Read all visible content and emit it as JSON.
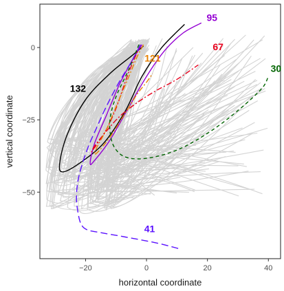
{
  "chart_data": {
    "type": "line",
    "title": "",
    "xlabel": "horizontal coordinate",
    "ylabel": "vertical coordinate",
    "xlim": [
      -35,
      44
    ],
    "ylim": [
      -73,
      15
    ],
    "x_ticks": [
      -20,
      0,
      20,
      40
    ],
    "y_ticks": [
      -50,
      -25,
      0
    ],
    "x_tick_labels": [
      "−20",
      "0",
      "20",
      "40"
    ],
    "y_tick_labels": [
      "−50",
      "−25",
      "0"
    ],
    "grid": false,
    "background_color": "#d3d3d3",
    "series": [
      {
        "name": "132",
        "color": "#000000",
        "dash": "solid",
        "label_at": [
          -22.5,
          -14.5
        ],
        "x": [
          -1,
          -5,
          -12,
          -20,
          -26,
          -28.5,
          -27.5,
          -22,
          -14,
          -7,
          -1.5,
          5,
          12.5
        ],
        "y": [
          0.5,
          -3,
          -9,
          -18,
          -30,
          -40,
          -43,
          -40,
          -33,
          -22,
          -10,
          0,
          8
        ]
      },
      {
        "name": "95",
        "color": "#9400d3",
        "dash": "solid",
        "label_at": [
          21.5,
          10
        ],
        "x": [
          -1.5,
          -5,
          -9,
          -13,
          -17,
          -18.5,
          -17,
          -12,
          -6,
          0,
          6,
          12,
          18
        ],
        "y": [
          1,
          -5,
          -13,
          -23,
          -33,
          -40,
          -39,
          -32,
          -21,
          -10,
          -1,
          5,
          8.5
        ]
      },
      {
        "name": "67",
        "color": "#e8001c",
        "dash": "dashdot",
        "label_at": [
          23.5,
          0
        ],
        "x": [
          -2,
          -4,
          -6,
          -8,
          -10,
          -13,
          -16,
          -18,
          -17,
          -14,
          -9,
          -3,
          3,
          10,
          17
        ],
        "y": [
          1,
          -4,
          -9,
          -15,
          -21,
          -28,
          -33,
          -36,
          -34,
          -30,
          -24,
          -19,
          -15,
          -11,
          -6
        ]
      },
      {
        "name": "121",
        "color": "#e68000",
        "dash": "dashdot",
        "label_at": [
          2,
          -4
        ],
        "x": [
          -1,
          -3,
          -5,
          -7,
          -9,
          -11,
          -13,
          -15,
          -16.5,
          -17,
          -15,
          -12,
          -9,
          -6,
          -3,
          0,
          2
        ],
        "y": [
          1,
          -3,
          -8,
          -13,
          -18,
          -23,
          -28,
          -32,
          -35,
          -37,
          -35,
          -31,
          -26,
          -21,
          -16,
          -12,
          -9
        ]
      },
      {
        "name": "30",
        "color": "#006400",
        "dash": "dashed",
        "label_at": [
          42.5,
          -7.5
        ],
        "x": [
          -2.5,
          -6,
          -10,
          -12,
          -11.5,
          -9.5,
          -6.5,
          -2,
          4,
          11,
          18,
          25,
          32,
          38,
          40
        ],
        "y": [
          1,
          -8,
          -17,
          -25,
          -32,
          -36,
          -38,
          -38.5,
          -37.5,
          -35,
          -31,
          -26,
          -20,
          -14,
          -10
        ]
      },
      {
        "name": "41",
        "color": "#5a10ff",
        "dash": "longdash",
        "label_at": [
          1,
          -63
        ],
        "x": [
          -2,
          -5,
          -9,
          -13,
          -16.5,
          -19,
          -21,
          -22.5,
          -23,
          -22.5,
          -21.5,
          -19.5,
          -15,
          -7,
          3,
          10.5
        ],
        "y": [
          1,
          -5,
          -12,
          -20,
          -28,
          -34,
          -40,
          -46,
          -52,
          -57,
          -61,
          -63,
          -64,
          -65.5,
          -67.5,
          -69.5
        ]
      }
    ]
  }
}
